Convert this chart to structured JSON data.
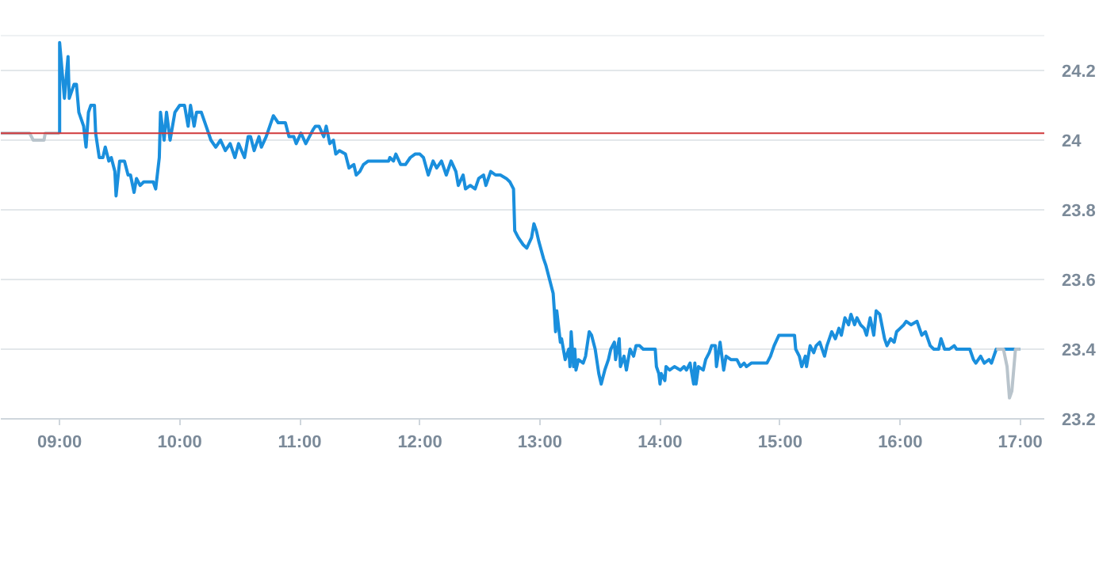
{
  "chart_data": {
    "type": "line",
    "xlim": [
      8.51,
      17.2
    ],
    "ylim": [
      23.2,
      24.3
    ],
    "xticks": [
      {
        "value": 9,
        "label": "09:00"
      },
      {
        "value": 10,
        "label": "10:00"
      },
      {
        "value": 11,
        "label": "11:00"
      },
      {
        "value": 12,
        "label": "12:00"
      },
      {
        "value": 13,
        "label": "13:00"
      },
      {
        "value": 14,
        "label": "14:00"
      },
      {
        "value": 15,
        "label": "15:00"
      },
      {
        "value": 16,
        "label": "16:00"
      },
      {
        "value": 17,
        "label": "17:00"
      }
    ],
    "yticks": [
      23.2,
      23.4,
      23.6,
      23.8,
      24,
      24.2
    ],
    "grid": "y",
    "marker": "none",
    "line_style": "solid",
    "ref_lines": [
      {
        "axis": "y",
        "value": 24.02,
        "label": null,
        "color": "#d0393b"
      }
    ],
    "series": [
      {
        "color": "#b9c4cc",
        "x": [
          8.51,
          8.75,
          8.78,
          8.87,
          8.88,
          9.0
        ],
        "values": [
          24.02,
          24.02,
          24.0,
          24.0,
          24.02,
          24.02
        ]
      },
      {
        "color": "#1a8fdd",
        "x": [
          9.0,
          9.0,
          9.04,
          9.07,
          9.08,
          9.12,
          9.14,
          9.16,
          9.2,
          9.22,
          9.24,
          9.26,
          9.29,
          9.3,
          9.33,
          9.36,
          9.38,
          9.41,
          9.43,
          9.46,
          9.47,
          9.5,
          9.54,
          9.57,
          9.59,
          9.62,
          9.64,
          9.67,
          9.7,
          9.78,
          9.8,
          9.83,
          9.84,
          9.87,
          9.89,
          9.92,
          9.96,
          10.0,
          10.04,
          10.07,
          10.09,
          10.12,
          10.14,
          10.18,
          10.22,
          10.26,
          10.3,
          10.34,
          10.38,
          10.42,
          10.46,
          10.49,
          10.54,
          10.57,
          10.59,
          10.62,
          10.66,
          10.68,
          10.72,
          10.75,
          10.78,
          10.82,
          10.88,
          10.91,
          10.95,
          10.97,
          11.01,
          11.05,
          11.11,
          11.13,
          11.16,
          11.2,
          11.22,
          11.25,
          11.28,
          11.3,
          11.33,
          11.38,
          11.41,
          11.45,
          11.47,
          11.5,
          11.53,
          11.57,
          11.67,
          11.74,
          11.75,
          11.78,
          11.8,
          11.84,
          11.88,
          11.92,
          11.96,
          12.0,
          12.03,
          12.07,
          12.11,
          12.14,
          12.18,
          12.22,
          12.26,
          12.3,
          12.32,
          12.36,
          12.38,
          12.42,
          12.46,
          12.49,
          12.53,
          12.55,
          12.59,
          12.63,
          12.67,
          12.72,
          12.75,
          12.78,
          12.79,
          12.82,
          12.86,
          12.89,
          12.93,
          12.95,
          12.97,
          12.99,
          13.03,
          13.05,
          13.08,
          13.11,
          13.12,
          13.13,
          13.14,
          13.16,
          13.17,
          13.18,
          13.2,
          13.21,
          13.24,
          13.25,
          13.26,
          13.28,
          13.29,
          13.3,
          13.32,
          13.36,
          13.38,
          13.41,
          13.43,
          13.46,
          13.49,
          13.51,
          13.54,
          13.57,
          13.59,
          13.62,
          13.63,
          13.66,
          13.67,
          13.7,
          13.72,
          13.75,
          13.78,
          13.8,
          13.83,
          13.86,
          13.91,
          13.93,
          13.96,
          13.97,
          13.99,
          14.0,
          14.01,
          14.04,
          14.05,
          14.08,
          14.12,
          14.17,
          14.2,
          14.22,
          14.25,
          14.28,
          14.29,
          14.3,
          14.32,
          14.36,
          14.38,
          14.41,
          14.43,
          14.46,
          14.47,
          14.5,
          14.53,
          14.55,
          14.59,
          14.64,
          14.67,
          14.7,
          14.72,
          14.76,
          14.8,
          14.89,
          14.92,
          14.95,
          14.99,
          15.09,
          15.12,
          15.13,
          15.16,
          15.18,
          15.21,
          15.22,
          15.25,
          15.28,
          15.3,
          15.33,
          15.37,
          15.39,
          15.41,
          15.43,
          15.46,
          15.49,
          15.51,
          15.54,
          15.57,
          15.59,
          15.62,
          15.64,
          15.67,
          15.7,
          15.72,
          15.75,
          15.78,
          15.8,
          15.83,
          15.87,
          15.89,
          15.92,
          15.95,
          15.97,
          16.0,
          16.03,
          16.05,
          16.09,
          16.14,
          16.18,
          16.21,
          16.25,
          16.28,
          16.32,
          16.34,
          16.37,
          16.41,
          16.45,
          16.47,
          16.51,
          16.55,
          16.58,
          16.61,
          16.63,
          16.67,
          16.7,
          16.74,
          16.76,
          16.8,
          16.86,
          17.0
        ],
        "values": [
          24.02,
          24.28,
          24.12,
          24.24,
          24.12,
          24.16,
          24.16,
          24.08,
          24.04,
          23.98,
          24.08,
          24.1,
          24.1,
          24.02,
          23.95,
          23.95,
          23.98,
          23.94,
          23.95,
          23.91,
          23.84,
          23.94,
          23.94,
          23.9,
          23.9,
          23.85,
          23.89,
          23.87,
          23.88,
          23.88,
          23.86,
          23.95,
          24.08,
          24.0,
          24.08,
          24.0,
          24.08,
          24.1,
          24.1,
          24.04,
          24.1,
          24.04,
          24.08,
          24.08,
          24.04,
          24.0,
          23.98,
          24.0,
          23.97,
          23.99,
          23.95,
          23.99,
          23.95,
          24.01,
          24.01,
          23.97,
          24.01,
          23.98,
          24.01,
          24.04,
          24.07,
          24.05,
          24.05,
          24.01,
          24.01,
          23.99,
          24.02,
          23.99,
          24.03,
          24.04,
          24.04,
          24.01,
          24.04,
          23.99,
          24.0,
          23.96,
          23.97,
          23.96,
          23.92,
          23.93,
          23.9,
          23.91,
          23.93,
          23.94,
          23.94,
          23.94,
          23.95,
          23.94,
          23.96,
          23.93,
          23.93,
          23.95,
          23.96,
          23.96,
          23.95,
          23.9,
          23.94,
          23.92,
          23.94,
          23.9,
          23.94,
          23.91,
          23.87,
          23.9,
          23.86,
          23.87,
          23.86,
          23.89,
          23.9,
          23.87,
          23.91,
          23.9,
          23.9,
          23.89,
          23.88,
          23.86,
          23.74,
          23.72,
          23.7,
          23.69,
          23.72,
          23.76,
          23.74,
          23.71,
          23.66,
          23.64,
          23.6,
          23.56,
          23.51,
          23.45,
          23.51,
          23.45,
          23.42,
          23.43,
          23.39,
          23.37,
          23.4,
          23.35,
          23.45,
          23.35,
          23.4,
          23.34,
          23.37,
          23.36,
          23.38,
          23.45,
          23.44,
          23.4,
          23.33,
          23.3,
          23.34,
          23.37,
          23.4,
          23.42,
          23.37,
          23.43,
          23.35,
          23.38,
          23.34,
          23.4,
          23.38,
          23.41,
          23.41,
          23.4,
          23.4,
          23.4,
          23.4,
          23.35,
          23.33,
          23.3,
          23.33,
          23.31,
          23.35,
          23.34,
          23.35,
          23.34,
          23.35,
          23.34,
          23.36,
          23.3,
          23.36,
          23.3,
          23.35,
          23.34,
          23.37,
          23.39,
          23.41,
          23.41,
          23.35,
          23.42,
          23.34,
          23.38,
          23.37,
          23.37,
          23.35,
          23.36,
          23.35,
          23.36,
          23.36,
          23.36,
          23.38,
          23.41,
          23.44,
          23.44,
          23.44,
          23.4,
          23.38,
          23.35,
          23.38,
          23.35,
          23.41,
          23.39,
          23.41,
          23.42,
          23.38,
          23.41,
          23.43,
          23.45,
          23.43,
          23.46,
          23.44,
          23.49,
          23.47,
          23.5,
          23.47,
          23.49,
          23.47,
          23.46,
          23.44,
          23.49,
          23.44,
          23.51,
          23.5,
          23.43,
          23.41,
          23.43,
          23.42,
          23.45,
          23.46,
          23.47,
          23.48,
          23.47,
          23.48,
          23.44,
          23.45,
          23.41,
          23.4,
          23.4,
          23.43,
          23.4,
          23.4,
          23.41,
          23.4,
          23.4,
          23.4,
          23.4,
          23.37,
          23.36,
          23.38,
          23.36,
          23.37,
          23.36,
          23.4,
          23.4,
          23.4
        ]
      },
      {
        "color": "#b9c4cc",
        "x": [
          16.8,
          16.86,
          16.89,
          16.91,
          16.93,
          16.96,
          17.0
        ],
        "values": [
          23.4,
          23.4,
          23.35,
          23.26,
          23.28,
          23.4,
          23.4
        ]
      }
    ]
  }
}
